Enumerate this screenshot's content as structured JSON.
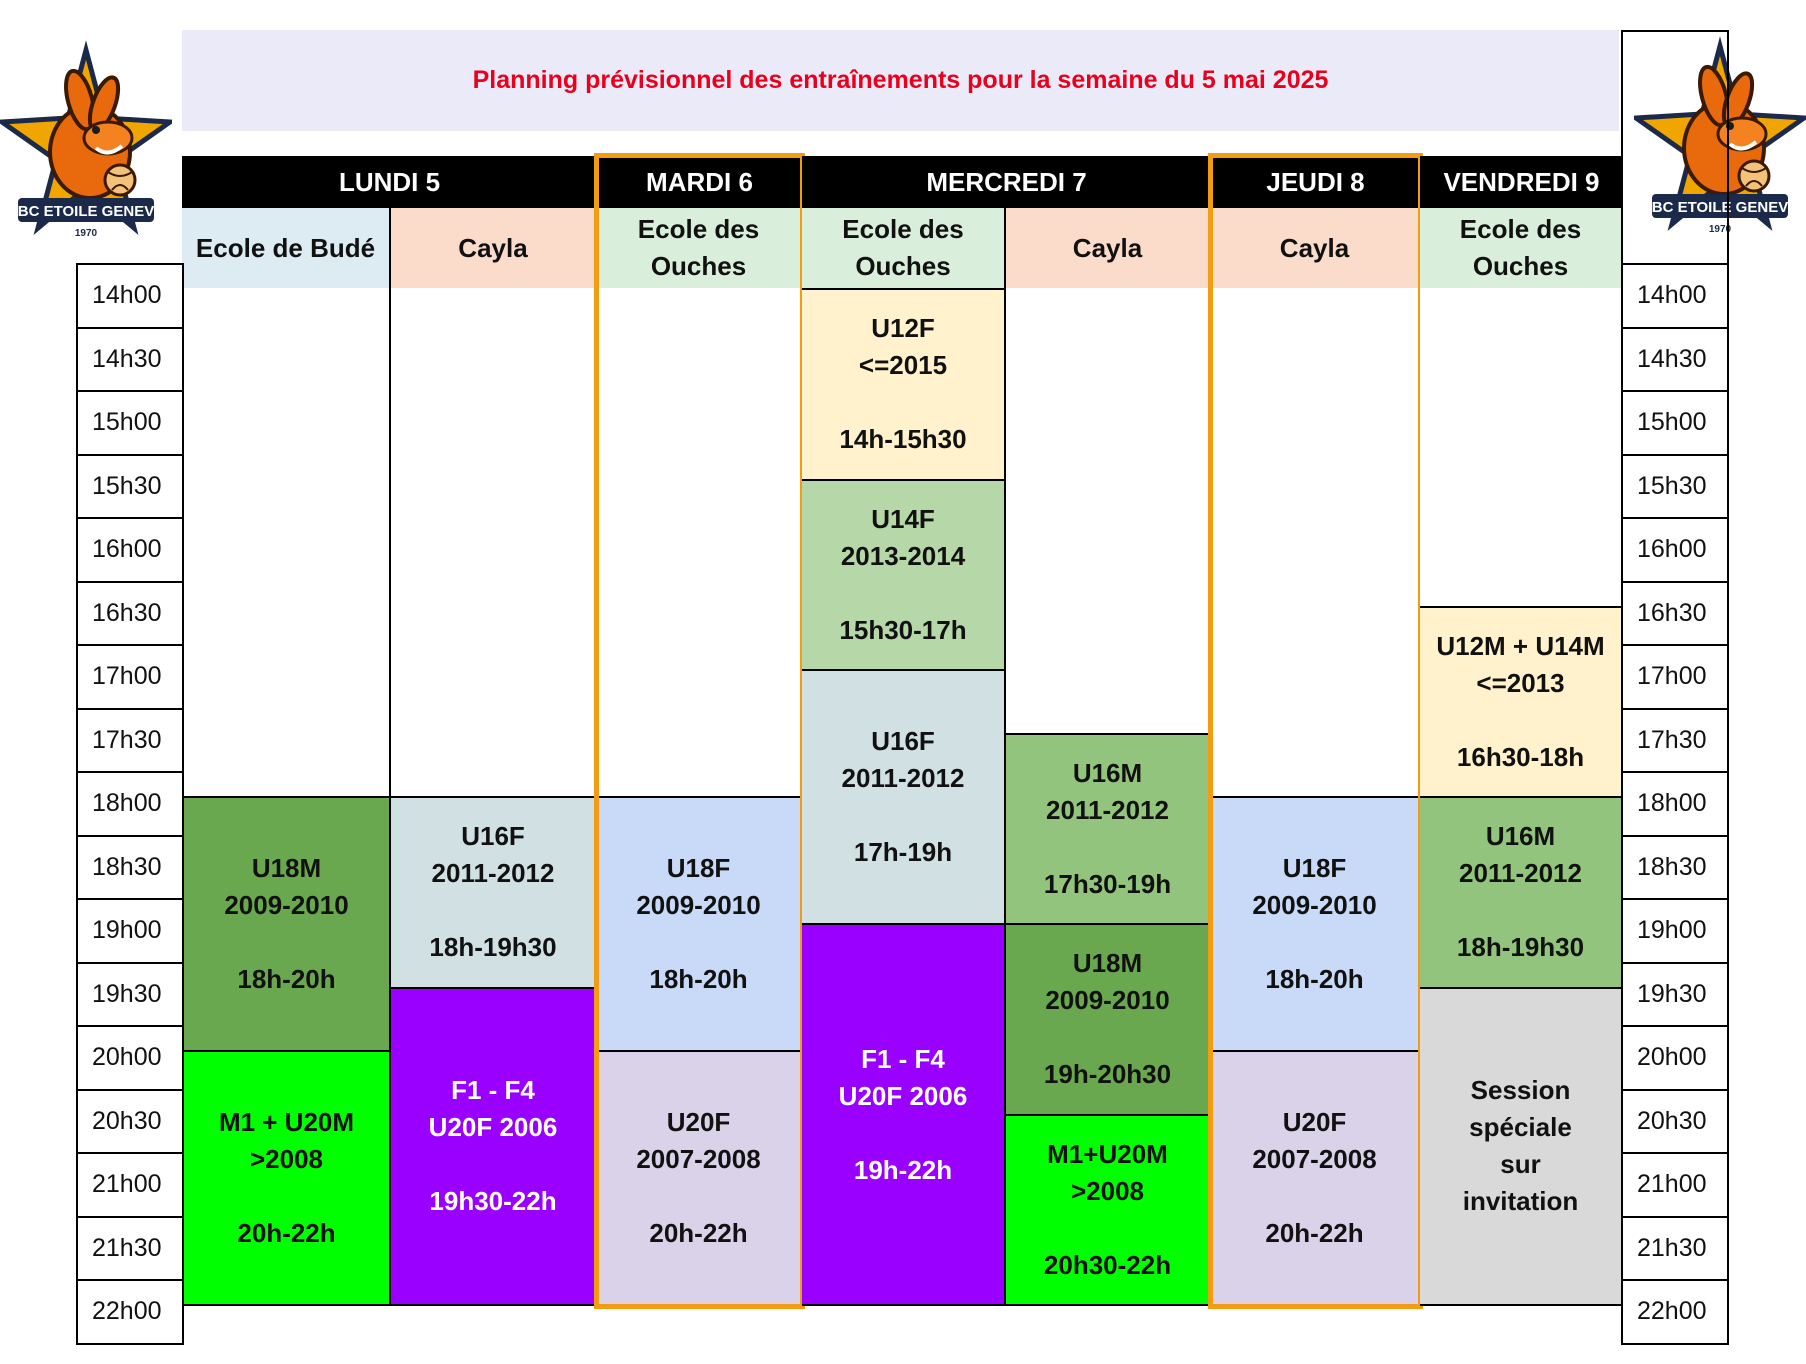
{
  "title": "Planning prévisionnel des entraînements pour la semaine du 5 mai 2025",
  "logo": {
    "icon": "kangaroo-club-logo",
    "text": "VBC ETOILE GENEVE",
    "year": "1970"
  },
  "times": [
    "14h00",
    "14h30",
    "15h00",
    "15h30",
    "16h00",
    "16h30",
    "17h00",
    "17h30",
    "18h00",
    "18h30",
    "19h00",
    "19h30",
    "20h00",
    "20h30",
    "21h00",
    "21h30",
    "22h00"
  ],
  "days": [
    {
      "label": "LUNDI 5",
      "highlight": false,
      "venues": [
        {
          "name": "Ecole de Budé",
          "color": "#dcecf2",
          "slots": [
            {
              "group": "U18M",
              "years": "2009-2010",
              "hours": "18h-20h",
              "start": "18h00",
              "end": "20h00",
              "color": "#6aa84f",
              "text_light": false
            },
            {
              "group": "M1 + U20M",
              "years": ">2008",
              "hours": "20h-22h",
              "start": "20h00",
              "end": "22h00",
              "color": "#00ff00",
              "text_light": false
            }
          ]
        },
        {
          "name": "Cayla",
          "color": "#fbdccb",
          "slots": [
            {
              "group": "U16F",
              "years": "2011-2012",
              "hours": "18h-19h30",
              "start": "18h00",
              "end": "19h30",
              "color": "#d0e0e3",
              "text_light": false
            },
            {
              "group": "F1 - F4",
              "years": "U20F 2006",
              "hours": "19h30-22h",
              "start": "19h30",
              "end": "22h00",
              "color": "#9900ff",
              "text_light": true
            }
          ]
        }
      ]
    },
    {
      "label": "MARDI 6",
      "highlight": true,
      "venues": [
        {
          "name": "Ecole des\nOuches",
          "color": "#d9efdc",
          "slots": [
            {
              "group": "U18F",
              "years": "2009-2010",
              "hours": "18h-20h",
              "start": "18h00",
              "end": "20h00",
              "color": "#c9daf8",
              "text_light": false
            },
            {
              "group": "U20F",
              "years": "2007-2008",
              "hours": "20h-22h",
              "start": "20h00",
              "end": "22h00",
              "color": "#d9d2e9",
              "text_light": false
            }
          ]
        }
      ]
    },
    {
      "label": "MERCREDI 7",
      "highlight": false,
      "venues": [
        {
          "name": "Ecole des\nOuches",
          "color": "#d9efdc",
          "slots": [
            {
              "group": "U12F",
              "years": "<=2015",
              "hours": "14h-15h30",
              "start": "14h00",
              "end": "15h30",
              "color": "#fff2cc",
              "text_light": false
            },
            {
              "group": "U14F",
              "years": "2013-2014",
              "hours": "15h30-17h",
              "start": "15h30",
              "end": "17h00",
              "color": "#b6d7a8",
              "text_light": false
            },
            {
              "group": "U16F",
              "years": "2011-2012",
              "hours": "17h-19h",
              "start": "17h00",
              "end": "19h00",
              "color": "#d0e0e3",
              "text_light": false
            },
            {
              "group": "F1 - F4",
              "years": "U20F 2006",
              "hours": "19h-22h",
              "start": "19h00",
              "end": "22h00",
              "color": "#9900ff",
              "text_light": true
            }
          ]
        },
        {
          "name": "Cayla",
          "color": "#fbdccb",
          "slots": [
            {
              "group": "U16M",
              "years": "2011-2012",
              "hours": "17h30-19h",
              "start": "17h30",
              "end": "19h00",
              "color": "#93c47d",
              "text_light": false
            },
            {
              "group": "U18M",
              "years": "2009-2010",
              "hours": "19h-20h30",
              "start": "19h00",
              "end": "20h30",
              "color": "#6aa84f",
              "text_light": false
            },
            {
              "group": "M1+U20M",
              "years": ">2008",
              "hours": "20h30-22h",
              "start": "20h30",
              "end": "22h00",
              "color": "#00ff00",
              "text_light": false
            }
          ]
        }
      ]
    },
    {
      "label": "JEUDI 8",
      "highlight": true,
      "venues": [
        {
          "name": "Cayla",
          "color": "#fbdccb",
          "slots": [
            {
              "group": "U18F",
              "years": "2009-2010",
              "hours": "18h-20h",
              "start": "18h00",
              "end": "20h00",
              "color": "#c9daf8",
              "text_light": false
            },
            {
              "group": "U20F",
              "years": "2007-2008",
              "hours": "20h-22h",
              "start": "20h00",
              "end": "22h00",
              "color": "#d9d2e9",
              "text_light": false
            }
          ]
        }
      ]
    },
    {
      "label": "VENDREDI 9",
      "highlight": false,
      "venues": [
        {
          "name": "Ecole des\nOuches",
          "color": "#d9efdc",
          "slots": [
            {
              "group": "U12M + U14M",
              "years": "<=2013",
              "hours": "16h30-18h",
              "start": "16h30",
              "end": "18h00",
              "color": "#fff2cc",
              "text_light": false
            },
            {
              "group": "U16M",
              "years": "2011-2012",
              "hours": "18h-19h30",
              "start": "18h00",
              "end": "19h30",
              "color": "#93c47d",
              "text_light": false
            },
            {
              "group": "Session",
              "years": "spéciale",
              "hours": "sur\ninvitation",
              "start": "19h30",
              "end": "22h00",
              "color": "#d9d9d9",
              "text_light": false
            }
          ]
        }
      ]
    }
  ]
}
